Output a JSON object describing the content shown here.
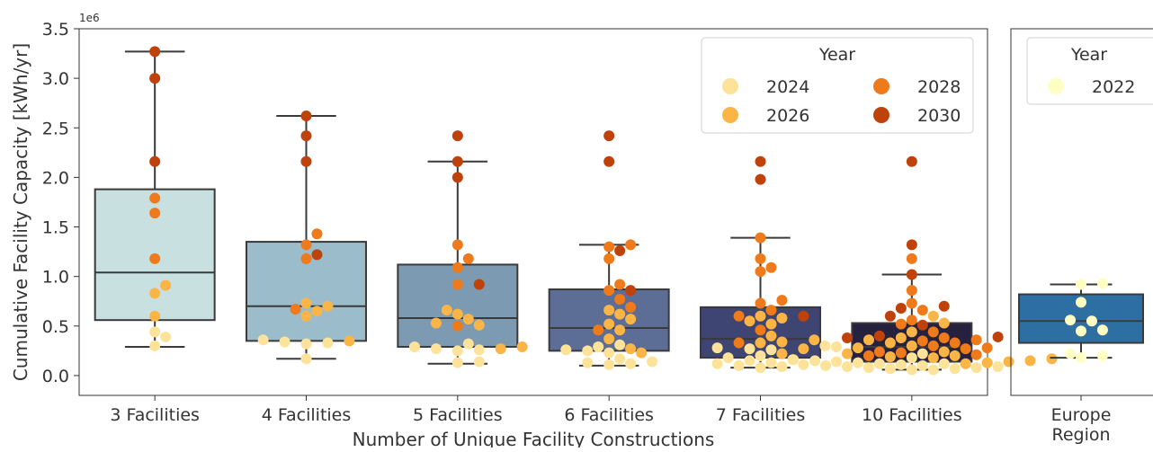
{
  "chart_data": [
    {
      "type": "box",
      "xlabel": "Number of Unique Facility Constructions",
      "ylabel": "Cumulative Facility Capacity [kWh/yr]",
      "y_scale_label": "1e6",
      "ylim": [
        -0.2,
        3.5
      ],
      "y_ticks": [
        0.0,
        0.5,
        1.0,
        1.5,
        2.0,
        2.5,
        3.0,
        3.5
      ],
      "y_tick_labels": [
        "0.0",
        "0.5",
        "1.0",
        "1.5",
        "2.0",
        "2.5",
        "3.0",
        "3.5"
      ],
      "grid": false,
      "legend": {
        "title": "Year",
        "position": "top-right",
        "entries": [
          {
            "label": "2024",
            "color": "#fde29a"
          },
          {
            "label": "2028",
            "color": "#ee7a1b"
          },
          {
            "label": "2026",
            "color": "#fbb547"
          },
          {
            "label": "2030",
            "color": "#bf420a"
          }
        ]
      },
      "year_colors": {
        "2024": "#fde29a",
        "2026": "#fbb547",
        "2028": "#ee7a1b",
        "2030": "#bf420a"
      },
      "categories": [
        "3 Facilities",
        "4 Facilities",
        "5 Facilities",
        "6 Facilities",
        "7 Facilities",
        "10 Facilities"
      ],
      "boxes": [
        {
          "category": "3 Facilities",
          "whislo": 0.29,
          "q1": 0.56,
          "med": 1.04,
          "q3": 1.88,
          "whishi": 3.27,
          "color": "#c9e0e1"
        },
        {
          "category": "4 Facilities",
          "whislo": 0.17,
          "q1": 0.35,
          "med": 0.7,
          "q3": 1.35,
          "whishi": 2.62,
          "color": "#9bbcca"
        },
        {
          "category": "5 Facilities",
          "whislo": 0.12,
          "q1": 0.29,
          "med": 0.58,
          "q3": 1.12,
          "whishi": 2.16,
          "color": "#7c9bb2"
        },
        {
          "category": "6 Facilities",
          "whislo": 0.1,
          "q1": 0.25,
          "med": 0.48,
          "q3": 0.87,
          "whishi": 1.32,
          "color": "#5c6e96"
        },
        {
          "category": "7 Facilities",
          "whislo": 0.08,
          "q1": 0.18,
          "med": 0.37,
          "q3": 0.69,
          "whishi": 1.39,
          "color": "#3e4573"
        },
        {
          "category": "10 Facilities",
          "whislo": 0.06,
          "q1": 0.14,
          "med": 0.29,
          "q3": 0.53,
          "whishi": 1.02,
          "color": "#25213f"
        }
      ],
      "points": [
        {
          "category": "3 Facilities",
          "year": "2024",
          "values": [
            0.44,
            0.39,
            0.3
          ]
        },
        {
          "category": "3 Facilities",
          "year": "2026",
          "values": [
            0.91,
            0.83,
            0.6
          ]
        },
        {
          "category": "3 Facilities",
          "year": "2028",
          "values": [
            1.79,
            1.64,
            1.18
          ]
        },
        {
          "category": "3 Facilities",
          "year": "2030",
          "values": [
            3.27,
            3.0,
            2.16
          ]
        },
        {
          "category": "4 Facilities",
          "year": "2024",
          "values": [
            0.36,
            0.34,
            0.33,
            0.32,
            0.17
          ]
        },
        {
          "category": "4 Facilities",
          "year": "2026",
          "values": [
            0.73,
            0.7,
            0.65,
            0.6,
            0.35
          ]
        },
        {
          "category": "4 Facilities",
          "year": "2028",
          "values": [
            1.43,
            1.32,
            1.18,
            0.67
          ]
        },
        {
          "category": "4 Facilities",
          "year": "2030",
          "values": [
            2.62,
            2.42,
            2.16,
            1.22
          ]
        },
        {
          "category": "5 Facilities",
          "year": "2024",
          "values": [
            0.32,
            0.29,
            0.27,
            0.26,
            0.25,
            0.14,
            0.13
          ]
        },
        {
          "category": "5 Facilities",
          "year": "2026",
          "values": [
            0.66,
            0.62,
            0.57,
            0.53,
            0.51,
            0.29,
            0.27
          ]
        },
        {
          "category": "5 Facilities",
          "year": "2028",
          "values": [
            1.32,
            1.18,
            1.09,
            0.92,
            0.5
          ]
        },
        {
          "category": "5 Facilities",
          "year": "2030",
          "values": [
            2.42,
            2.16,
            2.0,
            0.92
          ]
        },
        {
          "category": "6 Facilities",
          "year": "2024",
          "values": [
            0.31,
            0.29,
            0.26,
            0.25,
            0.23,
            0.17,
            0.14,
            0.13,
            0.12,
            0.11
          ]
        },
        {
          "category": "6 Facilities",
          "year": "2026",
          "values": [
            0.66,
            0.62,
            0.57,
            0.52,
            0.46,
            0.37,
            0.27,
            0.23
          ]
        },
        {
          "category": "6 Facilities",
          "year": "2028",
          "values": [
            1.32,
            1.3,
            1.18,
            0.92,
            0.86,
            0.77,
            0.69,
            0.46
          ]
        },
        {
          "category": "6 Facilities",
          "year": "2030",
          "values": [
            2.42,
            2.16,
            1.26,
            0.86
          ]
        },
        {
          "category": "7 Facilities",
          "year": "2024",
          "values": [
            0.3,
            0.28,
            0.27,
            0.26,
            0.2,
            0.18,
            0.16,
            0.15,
            0.13,
            0.12,
            0.11,
            0.1,
            0.09,
            0.08
          ]
        },
        {
          "category": "7 Facilities",
          "year": "2026",
          "values": [
            0.6,
            0.58,
            0.55,
            0.52,
            0.4,
            0.36,
            0.34,
            0.33,
            0.27,
            0.22
          ]
        },
        {
          "category": "7 Facilities",
          "year": "2028",
          "values": [
            1.39,
            1.18,
            1.09,
            1.05,
            0.76,
            0.73,
            0.66,
            0.6,
            0.46,
            0.33
          ]
        },
        {
          "category": "7 Facilities",
          "year": "2030",
          "values": [
            2.16,
            1.98,
            0.6
          ]
        },
        {
          "category": "10 Facilities",
          "year": "2024",
          "values": [
            0.29,
            0.22,
            0.18,
            0.16,
            0.15,
            0.14,
            0.13,
            0.12,
            0.12,
            0.11,
            0.1,
            0.1,
            0.09,
            0.09,
            0.08,
            0.08,
            0.07,
            0.07,
            0.06,
            0.06
          ]
        },
        {
          "category": "10 Facilities",
          "year": "2026",
          "values": [
            0.6,
            0.53,
            0.44,
            0.38,
            0.36,
            0.33,
            0.3,
            0.28,
            0.24,
            0.22,
            0.2,
            0.19,
            0.18,
            0.17,
            0.15,
            0.14,
            0.13,
            0.12
          ]
        },
        {
          "category": "10 Facilities",
          "year": "2028",
          "values": [
            1.18,
            0.86,
            0.73,
            0.66,
            0.56,
            0.52,
            0.44,
            0.38,
            0.36,
            0.35,
            0.33,
            0.3,
            0.28,
            0.27,
            0.24,
            0.23,
            0.21,
            0.2
          ]
        },
        {
          "category": "10 Facilities",
          "year": "2030",
          "values": [
            2.16,
            1.32,
            1.02,
            0.7,
            0.68,
            0.6,
            0.51,
            0.4,
            0.39,
            0.38
          ]
        }
      ]
    },
    {
      "type": "box",
      "ylim": [
        -0.2,
        3.5
      ],
      "categories": [
        "Europe\nRegion"
      ],
      "category_lines": [
        "Europe",
        "Region"
      ],
      "legend": {
        "title": "Year",
        "position": "top",
        "entries": [
          {
            "label": "2022",
            "color": "#ffffc4"
          }
        ]
      },
      "year_colors": {
        "2022": "#ffffc4"
      },
      "boxes": [
        {
          "category": "Europe Region",
          "whislo": 0.18,
          "q1": 0.33,
          "med": 0.55,
          "q3": 0.82,
          "whishi": 0.92,
          "color": "#2e6fa3"
        }
      ],
      "points": [
        {
          "category": "Europe Region",
          "year": "2022",
          "values": [
            0.93,
            0.92,
            0.74,
            0.56,
            0.55,
            0.46,
            0.45,
            0.22,
            0.2,
            0.18
          ]
        }
      ]
    }
  ]
}
